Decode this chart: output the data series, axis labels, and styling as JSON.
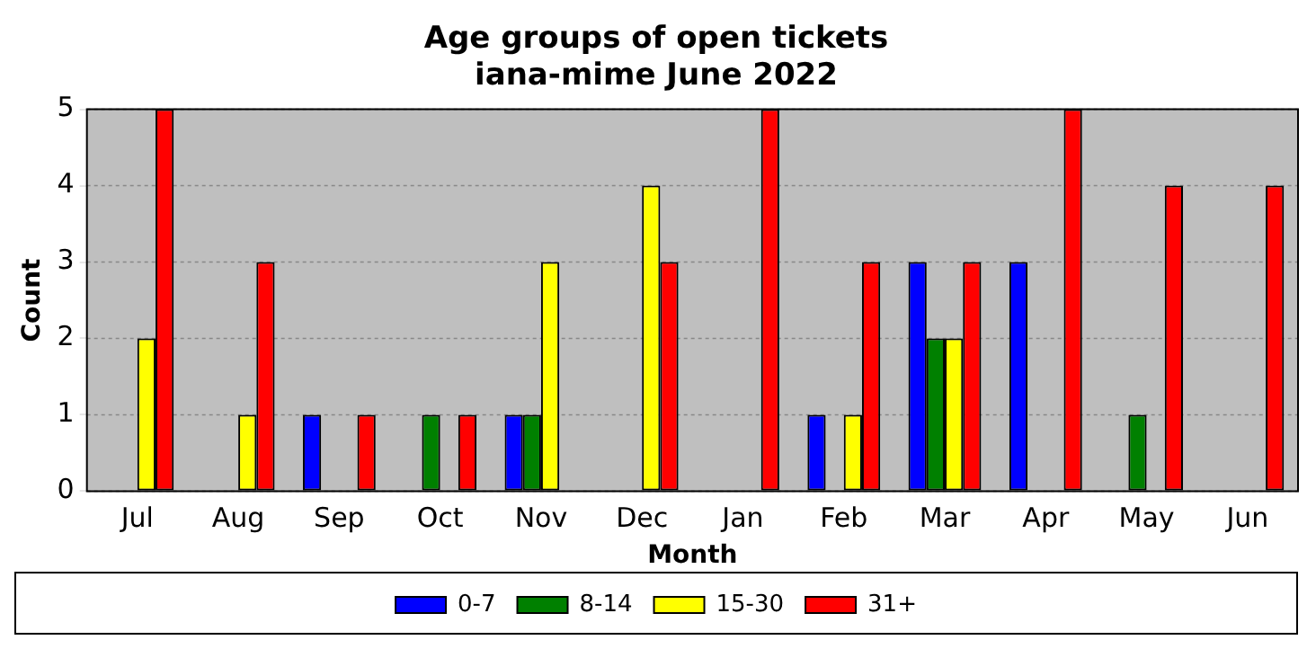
{
  "chart_data": {
    "type": "bar",
    "title": "Age groups of open tickets\niana-mime June 2022",
    "xlabel": "Month",
    "ylabel": "Count",
    "categories": [
      "Jul",
      "Aug",
      "Sep",
      "Oct",
      "Nov",
      "Dec",
      "Jan",
      "Feb",
      "Mar",
      "Apr",
      "May",
      "Jun"
    ],
    "series": [
      {
        "name": "0-7",
        "color": "#0000ff",
        "values": [
          0,
          0,
          1,
          0,
          1,
          0,
          0,
          1,
          3,
          3,
          0,
          0
        ]
      },
      {
        "name": "8-14",
        "color": "#008000",
        "values": [
          0,
          0,
          0,
          1,
          1,
          0,
          0,
          0,
          2,
          0,
          1,
          0
        ]
      },
      {
        "name": "15-30",
        "color": "#ffff00",
        "values": [
          2,
          1,
          0,
          0,
          3,
          4,
          0,
          1,
          2,
          0,
          0,
          0
        ]
      },
      {
        "name": "31+",
        "color": "#ff0000",
        "values": [
          5,
          3,
          1,
          1,
          0,
          3,
          5,
          3,
          3,
          5,
          4,
          4
        ]
      }
    ],
    "ylim": [
      0,
      5
    ],
    "yticks": [
      0,
      1,
      2,
      3,
      4,
      5
    ],
    "grid": "y",
    "legend": "bottom"
  }
}
